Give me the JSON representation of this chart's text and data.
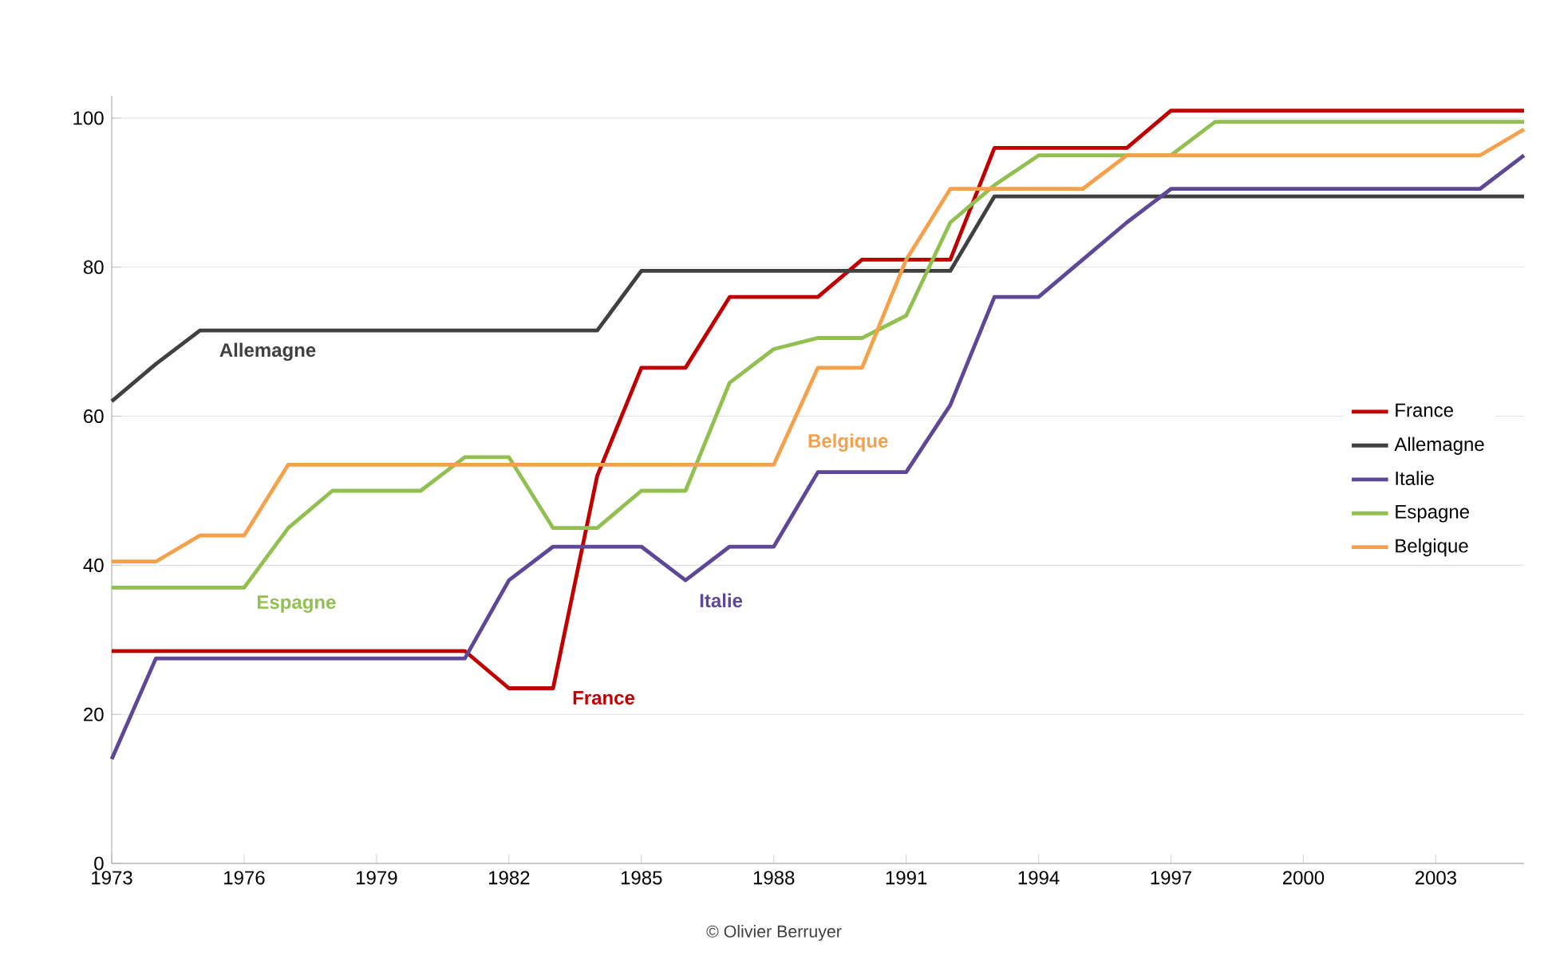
{
  "chart_data": {
    "type": "line",
    "x": [
      1973,
      1974,
      1975,
      1976,
      1977,
      1978,
      1979,
      1980,
      1981,
      1982,
      1983,
      1984,
      1985,
      1986,
      1987,
      1988,
      1989,
      1990,
      1991,
      1992,
      1993,
      1994,
      1995,
      1996,
      1997,
      1998,
      1999,
      2000,
      2001,
      2002,
      2003,
      2004,
      2005
    ],
    "series": [
      {
        "name": "France",
        "color": "#c00000",
        "values": [
          28.5,
          28.5,
          28.5,
          28.5,
          28.5,
          28.5,
          28.5,
          28.5,
          28.5,
          23.5,
          23.5,
          52,
          66.5,
          66.5,
          76,
          76,
          76,
          81,
          81,
          81,
          96,
          96,
          96,
          96,
          101,
          101,
          101,
          101,
          101,
          101,
          101,
          101,
          101
        ]
      },
      {
        "name": "Allemagne",
        "color": "#404040",
        "values": [
          62,
          67,
          71.5,
          71.5,
          71.5,
          71.5,
          71.5,
          71.5,
          71.5,
          71.5,
          71.5,
          71.5,
          79.5,
          79.5,
          79.5,
          79.5,
          79.5,
          79.5,
          79.5,
          79.5,
          89.5,
          89.5,
          89.5,
          89.5,
          89.5,
          89.5,
          89.5,
          89.5,
          89.5,
          89.5,
          89.5,
          89.5,
          89.5
        ]
      },
      {
        "name": "Italie",
        "color": "#5e4796",
        "values": [
          14,
          27.5,
          27.5,
          27.5,
          27.5,
          27.5,
          27.5,
          27.5,
          27.5,
          38,
          42.5,
          42.5,
          42.5,
          38,
          42.5,
          42.5,
          52.5,
          52.5,
          52.5,
          61.5,
          76,
          76,
          81,
          86,
          90.5,
          90.5,
          90.5,
          90.5,
          90.5,
          90.5,
          90.5,
          90.5,
          95
        ]
      },
      {
        "name": "Espagne",
        "color": "#92c050",
        "values": [
          37,
          37,
          37,
          37,
          45,
          50,
          50,
          50,
          54.5,
          54.5,
          45,
          45,
          50,
          50,
          64.5,
          69,
          70.5,
          70.5,
          73.5,
          86,
          91,
          95,
          95,
          95,
          95,
          99.5,
          99.5,
          99.5,
          99.5,
          99.5,
          99.5,
          99.5,
          99.5
        ]
      },
      {
        "name": "Belgique",
        "color": "#f5a04a",
        "values": [
          40.5,
          40.5,
          44,
          44,
          53.5,
          53.5,
          53.5,
          53.5,
          53.5,
          53.5,
          53.5,
          53.5,
          53.5,
          53.5,
          53.5,
          53.5,
          66.5,
          66.5,
          81,
          90.5,
          90.5,
          90.5,
          90.5,
          95,
          95,
          95,
          95,
          95,
          95,
          95,
          95,
          95,
          98.5
        ]
      }
    ],
    "xlim": [
      1973,
      2005
    ],
    "xticks": [
      1973,
      1976,
      1979,
      1982,
      1985,
      1988,
      1991,
      1994,
      1997,
      2000,
      2003
    ],
    "ylim": [
      0,
      103
    ],
    "yticks": [
      0,
      20,
      40,
      60,
      80,
      100
    ],
    "grid": "y",
    "legend": "right",
    "line_style": "solid",
    "marker": "none",
    "annotations": [
      "Allemagne",
      "Espagne",
      "France",
      "Italie",
      "Belgique",
      "© Olivier Berruyer"
    ]
  }
}
